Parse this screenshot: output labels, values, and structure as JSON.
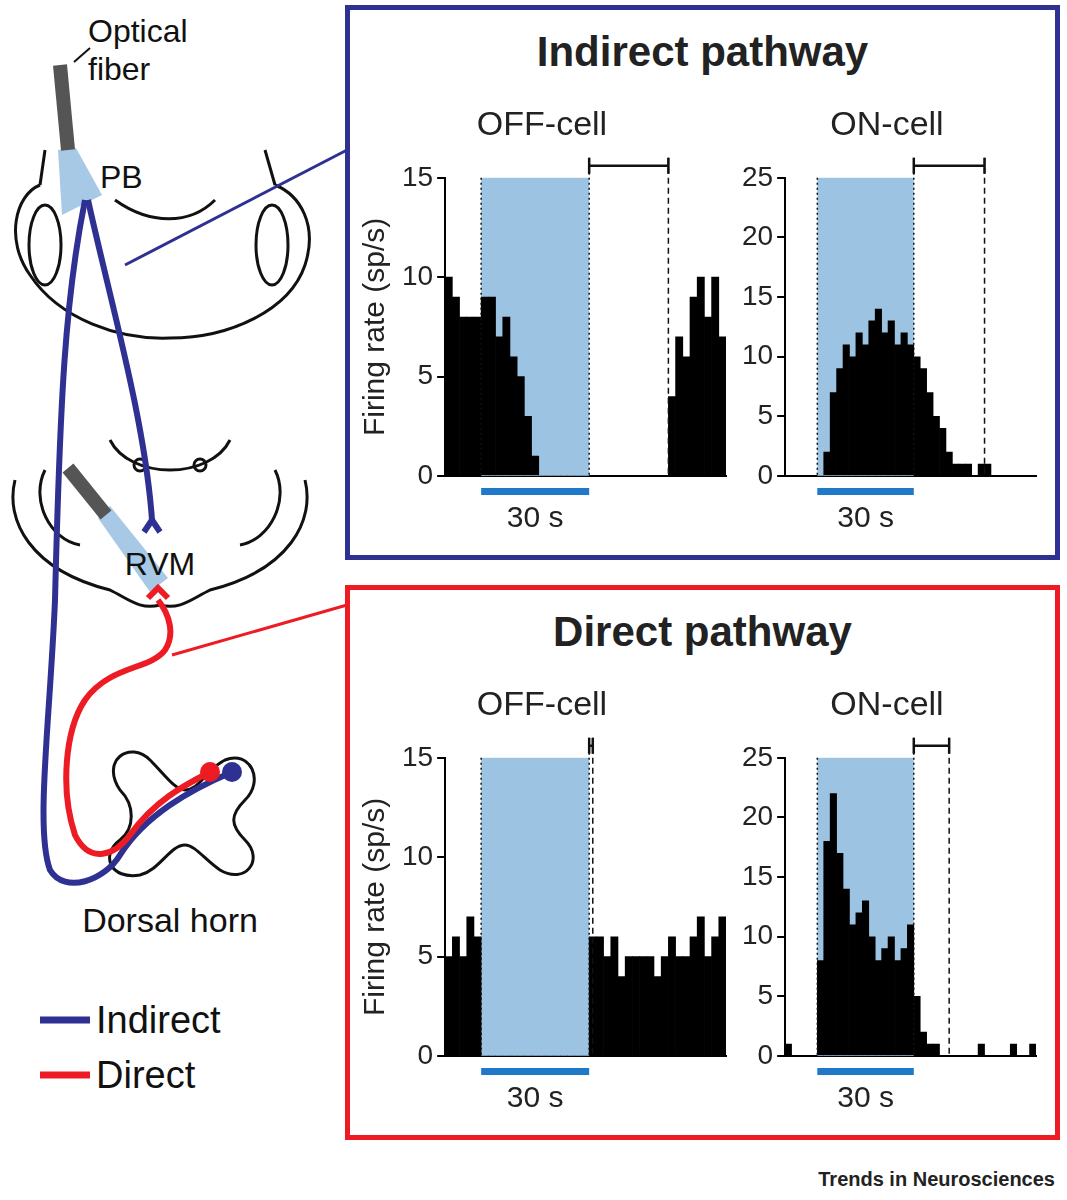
{
  "diagram": {
    "labels": {
      "fiber": "Optical fiber",
      "pb": "PB",
      "rvm": "RVM",
      "dorsal_horn": "Dorsal horn"
    },
    "legend": [
      {
        "name": "Indirect",
        "color": "#2E3192"
      },
      {
        "name": "Direct",
        "color": "#ED1C24"
      }
    ]
  },
  "panels": [
    {
      "title": "Indirect pathway",
      "color": "#2E3192"
    },
    {
      "title": "Direct pathway",
      "color": "#ED1C24"
    }
  ],
  "chart_data": [
    {
      "type": "bar",
      "title": "OFF-cell",
      "ylabel": "Firing rate (sp/s)",
      "color": "#000000",
      "bins": [
        0,
        2,
        4,
        6,
        8,
        10,
        12,
        14,
        16,
        18,
        20,
        22,
        24,
        26,
        28,
        30,
        32,
        34,
        36,
        38,
        40,
        42,
        44,
        46,
        48,
        50,
        52,
        54,
        56,
        58,
        60,
        62,
        64,
        66,
        68,
        70,
        72,
        74,
        76,
        78
      ],
      "counts": [
        10,
        9,
        8,
        8,
        8,
        9,
        9,
        7,
        8,
        6,
        5,
        3,
        1,
        0,
        0,
        0,
        0,
        0,
        0,
        0,
        0,
        0,
        0,
        0,
        0,
        0,
        0,
        0,
        0,
        0,
        0,
        4,
        7,
        6,
        9,
        10,
        8,
        10,
        7
      ],
      "xlim": [
        0,
        78
      ],
      "ylim": [
        0,
        15
      ],
      "yticks": [
        0,
        5,
        10,
        15
      ],
      "tick_labels": "y",
      "grid": false,
      "stimulus": [
        10,
        40
      ],
      "stimulus_label": "30 s",
      "interval": [
        40,
        62
      ]
    },
    {
      "type": "bar",
      "title": "ON-cell",
      "color": "#000000",
      "bins": [
        0,
        2,
        4,
        6,
        8,
        10,
        12,
        14,
        16,
        18,
        20,
        22,
        24,
        26,
        28,
        30,
        32,
        34,
        36,
        38,
        40,
        42,
        44,
        46,
        48,
        50,
        52,
        54,
        56,
        58,
        60,
        62,
        64,
        66,
        68,
        70,
        72,
        74,
        76,
        78
      ],
      "counts": [
        0,
        0,
        0,
        0,
        0,
        0,
        2,
        7,
        9,
        11,
        10,
        12,
        11,
        13,
        14,
        12,
        13,
        11,
        12,
        11,
        10,
        9,
        7,
        5,
        4,
        2,
        1,
        1,
        1,
        0,
        1,
        1,
        0,
        0,
        0,
        0,
        0,
        0,
        0
      ],
      "xlim": [
        0,
        78
      ],
      "ylim": [
        0,
        25
      ],
      "yticks": [
        0,
        5,
        10,
        15,
        20,
        25
      ],
      "tick_labels": "y",
      "grid": false,
      "stimulus": [
        10,
        40
      ],
      "stimulus_label": "30 s",
      "interval": [
        40,
        62
      ]
    },
    {
      "type": "bar",
      "title": "OFF-cell",
      "ylabel": "Firing rate (sp/s)",
      "color": "#000000",
      "bins": [
        0,
        2,
        4,
        6,
        8,
        10,
        12,
        14,
        16,
        18,
        20,
        22,
        24,
        26,
        28,
        30,
        32,
        34,
        36,
        38,
        40,
        42,
        44,
        46,
        48,
        50,
        52,
        54,
        56,
        58,
        60,
        62,
        64,
        66,
        68,
        70,
        72,
        74,
        76,
        78
      ],
      "counts": [
        5,
        6,
        5,
        7,
        6,
        0,
        0,
        0,
        0,
        0,
        0,
        0,
        0,
        0,
        0,
        0,
        0,
        0,
        0,
        0,
        6,
        6,
        5,
        6,
        4,
        5,
        5,
        5,
        5,
        4,
        5,
        6,
        5,
        5,
        6,
        7,
        5,
        6,
        7
      ],
      "xlim": [
        0,
        78
      ],
      "ylim": [
        0,
        15
      ],
      "yticks": [
        0,
        5,
        10,
        15
      ],
      "tick_labels": "y",
      "grid": false,
      "stimulus": [
        10,
        40
      ],
      "stimulus_label": "30 s",
      "interval": [
        40,
        41
      ]
    },
    {
      "type": "bar",
      "title": "ON-cell",
      "color": "#000000",
      "bins": [
        0,
        2,
        4,
        6,
        8,
        10,
        12,
        14,
        16,
        18,
        20,
        22,
        24,
        26,
        28,
        30,
        32,
        34,
        36,
        38,
        40,
        42,
        44,
        46,
        48,
        50,
        52,
        54,
        56,
        58,
        60,
        62,
        64,
        66,
        68,
        70,
        72,
        74,
        76,
        78
      ],
      "counts": [
        1,
        0,
        0,
        0,
        0,
        8,
        18,
        22,
        17,
        14,
        11,
        12,
        13,
        10,
        8,
        9,
        10,
        8,
        9,
        11,
        5,
        2,
        1,
        1,
        0,
        0,
        0,
        0,
        0,
        0,
        1,
        0,
        0,
        0,
        0,
        1,
        0,
        0,
        1
      ],
      "xlim": [
        0,
        78
      ],
      "ylim": [
        0,
        25
      ],
      "yticks": [
        0,
        5,
        10,
        15,
        20,
        25
      ],
      "tick_labels": "y",
      "grid": false,
      "stimulus": [
        10,
        40
      ],
      "stimulus_label": "30 s",
      "interval": [
        40,
        51
      ]
    }
  ],
  "footer": "Trends in Neurosciences"
}
